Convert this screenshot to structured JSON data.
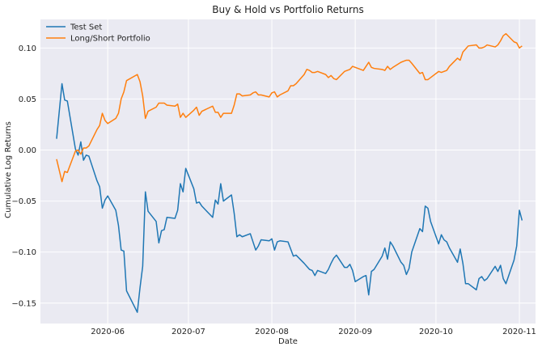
{
  "chart_data": {
    "type": "line",
    "title": "Buy & Hold vs Portfolio Returns",
    "xlabel": "Date",
    "ylabel": "Cumulative Log Returns",
    "xlim": [
      "2020-05-07",
      "2020-11-07"
    ],
    "ylim": [
      -0.17,
      0.128
    ],
    "x_ticks": [
      "2020-06-01",
      "2020-07-01",
      "2020-08-01",
      "2020-09-01",
      "2020-10-01",
      "2020-11-01"
    ],
    "x_tick_labels": [
      "2020-06",
      "2020-07",
      "2020-08",
      "2020-09",
      "2020-10",
      "2020-11"
    ],
    "y_ticks": [
      -0.15,
      -0.1,
      -0.05,
      0.0,
      0.05,
      0.1
    ],
    "y_tick_labels": [
      "−0.15",
      "−0.10",
      "−0.05",
      "0.00",
      "0.05",
      "0.10"
    ],
    "grid": true,
    "legend_position": "top-left",
    "colors": {
      "background": "#eaeaf2",
      "grid": "#ffffff",
      "series1": "#1f77b4",
      "series2": "#ff7f0e"
    },
    "series": [
      {
        "name": "Test Set",
        "points": [
          [
            "2020-05-13",
            0.011
          ],
          [
            "2020-05-15",
            0.065
          ],
          [
            "2020-05-16",
            0.049
          ],
          [
            "2020-05-17",
            0.048
          ],
          [
            "2020-05-20",
            0.001
          ],
          [
            "2020-05-21",
            -0.005
          ],
          [
            "2020-05-22",
            0.008
          ],
          [
            "2020-05-23",
            -0.01
          ],
          [
            "2020-05-24",
            -0.005
          ],
          [
            "2020-05-25",
            -0.006
          ],
          [
            "2020-05-28",
            -0.03
          ],
          [
            "2020-05-29",
            -0.036
          ],
          [
            "2020-05-30",
            -0.057
          ],
          [
            "2020-05-31",
            -0.049
          ],
          [
            "2020-06-01",
            -0.045
          ],
          [
            "2020-06-04",
            -0.059
          ],
          [
            "2020-06-05",
            -0.074
          ],
          [
            "2020-06-06",
            -0.098
          ],
          [
            "2020-06-07",
            -0.099
          ],
          [
            "2020-06-08",
            -0.138
          ],
          [
            "2020-06-12",
            -0.159
          ],
          [
            "2020-06-13",
            -0.135
          ],
          [
            "2020-06-14",
            -0.114
          ],
          [
            "2020-06-15",
            -0.041
          ],
          [
            "2020-06-16",
            -0.06
          ],
          [
            "2020-06-19",
            -0.07
          ],
          [
            "2020-06-20",
            -0.091
          ],
          [
            "2020-06-21",
            -0.079
          ],
          [
            "2020-06-22",
            -0.078
          ],
          [
            "2020-06-23",
            -0.066
          ],
          [
            "2020-06-26",
            -0.067
          ],
          [
            "2020-06-27",
            -0.059
          ],
          [
            "2020-06-28",
            -0.033
          ],
          [
            "2020-06-29",
            -0.041
          ],
          [
            "2020-06-30",
            -0.018
          ],
          [
            "2020-07-03",
            -0.038
          ],
          [
            "2020-07-04",
            -0.052
          ],
          [
            "2020-07-05",
            -0.051
          ],
          [
            "2020-07-06",
            -0.055
          ],
          [
            "2020-07-10",
            -0.066
          ],
          [
            "2020-07-11",
            -0.049
          ],
          [
            "2020-07-12",
            -0.053
          ],
          [
            "2020-07-13",
            -0.033
          ],
          [
            "2020-07-14",
            -0.05
          ],
          [
            "2020-07-17",
            -0.044
          ],
          [
            "2020-07-18",
            -0.062
          ],
          [
            "2020-07-19",
            -0.085
          ],
          [
            "2020-07-20",
            -0.083
          ],
          [
            "2020-07-21",
            -0.085
          ],
          [
            "2020-07-24",
            -0.082
          ],
          [
            "2020-07-25",
            -0.09
          ],
          [
            "2020-07-26",
            -0.098
          ],
          [
            "2020-07-27",
            -0.094
          ],
          [
            "2020-07-28",
            -0.088
          ],
          [
            "2020-07-31",
            -0.089
          ],
          [
            "2020-08-01",
            -0.087
          ],
          [
            "2020-08-02",
            -0.098
          ],
          [
            "2020-08-03",
            -0.09
          ],
          [
            "2020-08-04",
            -0.089
          ],
          [
            "2020-08-07",
            -0.09
          ],
          [
            "2020-08-08",
            -0.097
          ],
          [
            "2020-08-09",
            -0.104
          ],
          [
            "2020-08-10",
            -0.103
          ],
          [
            "2020-08-13",
            -0.111
          ],
          [
            "2020-08-14",
            -0.114
          ],
          [
            "2020-08-15",
            -0.117
          ],
          [
            "2020-08-16",
            -0.118
          ],
          [
            "2020-08-17",
            -0.123
          ],
          [
            "2020-08-18",
            -0.118
          ],
          [
            "2020-08-21",
            -0.121
          ],
          [
            "2020-08-22",
            -0.117
          ],
          [
            "2020-08-23",
            -0.111
          ],
          [
            "2020-08-24",
            -0.106
          ],
          [
            "2020-08-25",
            -0.103
          ],
          [
            "2020-08-28",
            -0.115
          ],
          [
            "2020-08-29",
            -0.115
          ],
          [
            "2020-08-30",
            -0.112
          ],
          [
            "2020-08-31",
            -0.118
          ],
          [
            "2020-09-01",
            -0.129
          ],
          [
            "2020-09-04",
            -0.124
          ],
          [
            "2020-09-05",
            -0.123
          ],
          [
            "2020-09-06",
            -0.142
          ],
          [
            "2020-09-07",
            -0.119
          ],
          [
            "2020-09-08",
            -0.117
          ],
          [
            "2020-09-11",
            -0.104
          ],
          [
            "2020-09-12",
            -0.096
          ],
          [
            "2020-09-13",
            -0.107
          ],
          [
            "2020-09-14",
            -0.09
          ],
          [
            "2020-09-15",
            -0.094
          ],
          [
            "2020-09-18",
            -0.11
          ],
          [
            "2020-09-19",
            -0.113
          ],
          [
            "2020-09-20",
            -0.122
          ],
          [
            "2020-09-21",
            -0.116
          ],
          [
            "2020-09-22",
            -0.1
          ],
          [
            "2020-09-25",
            -0.077
          ],
          [
            "2020-09-26",
            -0.08
          ],
          [
            "2020-09-27",
            -0.055
          ],
          [
            "2020-09-28",
            -0.057
          ],
          [
            "2020-09-29",
            -0.07
          ],
          [
            "2020-10-02",
            -0.092
          ],
          [
            "2020-10-03",
            -0.083
          ],
          [
            "2020-10-04",
            -0.088
          ],
          [
            "2020-10-05",
            -0.09
          ],
          [
            "2020-10-06",
            -0.096
          ],
          [
            "2020-10-09",
            -0.11
          ],
          [
            "2020-10-10",
            -0.097
          ],
          [
            "2020-10-11",
            -0.111
          ],
          [
            "2020-10-12",
            -0.131
          ],
          [
            "2020-10-13",
            -0.131
          ],
          [
            "2020-10-16",
            -0.137
          ],
          [
            "2020-10-17",
            -0.126
          ],
          [
            "2020-10-18",
            -0.124
          ],
          [
            "2020-10-19",
            -0.128
          ],
          [
            "2020-10-20",
            -0.126
          ],
          [
            "2020-10-23",
            -0.114
          ],
          [
            "2020-10-24",
            -0.119
          ],
          [
            "2020-10-25",
            -0.113
          ],
          [
            "2020-10-26",
            -0.126
          ],
          [
            "2020-10-27",
            -0.131
          ],
          [
            "2020-10-30",
            -0.108
          ],
          [
            "2020-10-31",
            -0.094
          ],
          [
            "2020-11-01",
            -0.059
          ],
          [
            "2020-11-02",
            -0.069
          ]
        ]
      },
      {
        "name": "Long/Short Portfolio",
        "points": [
          [
            "2020-05-13",
            -0.009
          ],
          [
            "2020-05-15",
            -0.031
          ],
          [
            "2020-05-16",
            -0.021
          ],
          [
            "2020-05-17",
            -0.022
          ],
          [
            "2020-05-20",
            -0.001
          ],
          [
            "2020-05-21",
            0.0
          ],
          [
            "2020-05-22",
            -0.004
          ],
          [
            "2020-05-23",
            0.002
          ],
          [
            "2020-05-24",
            0.002
          ],
          [
            "2020-05-25",
            0.004
          ],
          [
            "2020-05-28",
            0.02
          ],
          [
            "2020-05-29",
            0.024
          ],
          [
            "2020-05-30",
            0.036
          ],
          [
            "2020-05-31",
            0.029
          ],
          [
            "2020-06-01",
            0.026
          ],
          [
            "2020-06-04",
            0.031
          ],
          [
            "2020-06-05",
            0.036
          ],
          [
            "2020-06-06",
            0.05
          ],
          [
            "2020-06-07",
            0.057
          ],
          [
            "2020-06-08",
            0.068
          ],
          [
            "2020-06-12",
            0.074
          ],
          [
            "2020-06-13",
            0.067
          ],
          [
            "2020-06-14",
            0.053
          ],
          [
            "2020-06-15",
            0.031
          ],
          [
            "2020-06-16",
            0.038
          ],
          [
            "2020-06-19",
            0.042
          ],
          [
            "2020-06-20",
            0.046
          ],
          [
            "2020-06-21",
            0.046
          ],
          [
            "2020-06-22",
            0.046
          ],
          [
            "2020-06-23",
            0.044
          ],
          [
            "2020-06-26",
            0.043
          ],
          [
            "2020-06-27",
            0.045
          ],
          [
            "2020-06-28",
            0.032
          ],
          [
            "2020-06-29",
            0.036
          ],
          [
            "2020-06-30",
            0.032
          ],
          [
            "2020-07-03",
            0.039
          ],
          [
            "2020-07-04",
            0.042
          ],
          [
            "2020-07-05",
            0.034
          ],
          [
            "2020-07-06",
            0.038
          ],
          [
            "2020-07-10",
            0.043
          ],
          [
            "2020-07-11",
            0.037
          ],
          [
            "2020-07-12",
            0.037
          ],
          [
            "2020-07-13",
            0.032
          ],
          [
            "2020-07-14",
            0.036
          ],
          [
            "2020-07-17",
            0.036
          ],
          [
            "2020-07-18",
            0.044
          ],
          [
            "2020-07-19",
            0.055
          ],
          [
            "2020-07-20",
            0.055
          ],
          [
            "2020-07-21",
            0.053
          ],
          [
            "2020-07-24",
            0.054
          ],
          [
            "2020-07-25",
            0.056
          ],
          [
            "2020-07-26",
            0.057
          ],
          [
            "2020-07-27",
            0.054
          ],
          [
            "2020-07-28",
            0.054
          ],
          [
            "2020-07-31",
            0.052
          ],
          [
            "2020-08-01",
            0.056
          ],
          [
            "2020-08-02",
            0.057
          ],
          [
            "2020-08-03",
            0.052
          ],
          [
            "2020-08-04",
            0.054
          ],
          [
            "2020-08-07",
            0.058
          ],
          [
            "2020-08-08",
            0.063
          ],
          [
            "2020-08-09",
            0.063
          ],
          [
            "2020-08-10",
            0.065
          ],
          [
            "2020-08-13",
            0.074
          ],
          [
            "2020-08-14",
            0.079
          ],
          [
            "2020-08-15",
            0.078
          ],
          [
            "2020-08-16",
            0.076
          ],
          [
            "2020-08-17",
            0.076
          ],
          [
            "2020-08-18",
            0.077
          ],
          [
            "2020-08-21",
            0.074
          ],
          [
            "2020-08-22",
            0.071
          ],
          [
            "2020-08-23",
            0.073
          ],
          [
            "2020-08-24",
            0.07
          ],
          [
            "2020-08-25",
            0.069
          ],
          [
            "2020-08-28",
            0.077
          ],
          [
            "2020-08-29",
            0.078
          ],
          [
            "2020-08-30",
            0.079
          ],
          [
            "2020-08-31",
            0.082
          ],
          [
            "2020-09-01",
            0.081
          ],
          [
            "2020-09-04",
            0.078
          ],
          [
            "2020-09-05",
            0.082
          ],
          [
            "2020-09-06",
            0.086
          ],
          [
            "2020-09-07",
            0.081
          ],
          [
            "2020-09-08",
            0.08
          ],
          [
            "2020-09-11",
            0.079
          ],
          [
            "2020-09-12",
            0.078
          ],
          [
            "2020-09-13",
            0.082
          ],
          [
            "2020-09-14",
            0.079
          ],
          [
            "2020-09-15",
            0.081
          ],
          [
            "2020-09-18",
            0.086
          ],
          [
            "2020-09-19",
            0.087
          ],
          [
            "2020-09-20",
            0.088
          ],
          [
            "2020-09-21",
            0.088
          ],
          [
            "2020-09-22",
            0.085
          ],
          [
            "2020-09-25",
            0.075
          ],
          [
            "2020-09-26",
            0.076
          ],
          [
            "2020-09-27",
            0.069
          ],
          [
            "2020-09-28",
            0.069
          ],
          [
            "2020-09-29",
            0.071
          ],
          [
            "2020-10-02",
            0.077
          ],
          [
            "2020-10-03",
            0.076
          ],
          [
            "2020-10-04",
            0.077
          ],
          [
            "2020-10-05",
            0.078
          ],
          [
            "2020-10-06",
            0.082
          ],
          [
            "2020-10-09",
            0.09
          ],
          [
            "2020-10-10",
            0.088
          ],
          [
            "2020-10-11",
            0.096
          ],
          [
            "2020-10-12",
            0.099
          ],
          [
            "2020-10-13",
            0.102
          ],
          [
            "2020-10-16",
            0.103
          ],
          [
            "2020-10-17",
            0.1
          ],
          [
            "2020-10-18",
            0.1
          ],
          [
            "2020-10-19",
            0.101
          ],
          [
            "2020-10-20",
            0.103
          ],
          [
            "2020-10-23",
            0.101
          ],
          [
            "2020-10-24",
            0.103
          ],
          [
            "2020-10-25",
            0.107
          ],
          [
            "2020-10-26",
            0.112
          ],
          [
            "2020-10-27",
            0.114
          ],
          [
            "2020-10-30",
            0.106
          ],
          [
            "2020-10-31",
            0.105
          ],
          [
            "2020-11-01",
            0.1
          ],
          [
            "2020-11-02",
            0.102
          ]
        ]
      }
    ]
  }
}
